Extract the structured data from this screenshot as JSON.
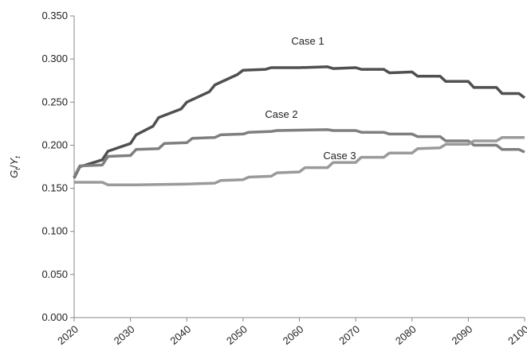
{
  "chart_data": {
    "type": "line",
    "ylabel": [
      "G",
      "t",
      "/",
      "Y",
      "t"
    ],
    "xlim": [
      2020,
      2100
    ],
    "xticks": [
      2020,
      2030,
      2040,
      2050,
      2060,
      2070,
      2080,
      2090,
      2100
    ],
    "ylim": [
      0,
      0.35
    ],
    "yticks": [
      {
        "value": 0,
        "label": "0.000"
      },
      {
        "value": 0.05,
        "label": "0.050"
      },
      {
        "value": 0.1,
        "label": "0.100"
      },
      {
        "value": 0.15,
        "label": "0.150"
      },
      {
        "value": 0.2,
        "label": "0.200"
      },
      {
        "value": 0.25,
        "label": "0.250"
      },
      {
        "value": 0.3,
        "label": "0.300"
      },
      {
        "value": 0.35,
        "label": "0.350"
      }
    ],
    "series": [
      {
        "name": "Case 1",
        "color": "#505050",
        "x": [
          2020,
          2021,
          2025,
          2026,
          2030,
          2031,
          2034,
          2035,
          2039,
          2040,
          2044,
          2045,
          2049,
          2050,
          2054,
          2055,
          2060,
          2065,
          2066,
          2070,
          2071,
          2075,
          2076,
          2080,
          2081,
          2085,
          2086,
          2090,
          2091,
          2095,
          2096,
          2099,
          2100
        ],
        "values": [
          0.162,
          0.175,
          0.183,
          0.193,
          0.202,
          0.212,
          0.222,
          0.232,
          0.242,
          0.25,
          0.262,
          0.27,
          0.282,
          0.287,
          0.288,
          0.29,
          0.29,
          0.291,
          0.289,
          0.29,
          0.288,
          0.288,
          0.284,
          0.285,
          0.28,
          0.28,
          0.274,
          0.274,
          0.267,
          0.267,
          0.26,
          0.26,
          0.255
        ]
      },
      {
        "name": "Case 2",
        "color": "#7f7f7f",
        "x": [
          2020,
          2021,
          2025,
          2026,
          2030,
          2031,
          2035,
          2036,
          2040,
          2041,
          2045,
          2046,
          2050,
          2051,
          2055,
          2056,
          2065,
          2066,
          2070,
          2071,
          2075,
          2076,
          2080,
          2081,
          2085,
          2086,
          2090,
          2091,
          2095,
          2096,
          2099,
          2100
        ],
        "values": [
          0.163,
          0.176,
          0.177,
          0.187,
          0.188,
          0.195,
          0.196,
          0.202,
          0.203,
          0.208,
          0.209,
          0.212,
          0.213,
          0.215,
          0.216,
          0.217,
          0.218,
          0.217,
          0.217,
          0.215,
          0.215,
          0.213,
          0.213,
          0.21,
          0.21,
          0.205,
          0.205,
          0.2,
          0.2,
          0.195,
          0.195,
          0.192
        ]
      },
      {
        "name": "Case 3",
        "color": "#9a9a9a",
        "x": [
          2020,
          2025,
          2026,
          2030,
          2031,
          2040,
          2045,
          2046,
          2050,
          2051,
          2055,
          2056,
          2060,
          2061,
          2065,
          2066,
          2070,
          2071,
          2075,
          2076,
          2080,
          2081,
          2085,
          2086,
          2090,
          2091,
          2095,
          2096,
          2100
        ],
        "values": [
          0.157,
          0.157,
          0.154,
          0.154,
          0.154,
          0.155,
          0.156,
          0.159,
          0.16,
          0.163,
          0.164,
          0.168,
          0.169,
          0.174,
          0.174,
          0.18,
          0.18,
          0.186,
          0.186,
          0.191,
          0.191,
          0.196,
          0.197,
          0.201,
          0.201,
          0.205,
          0.205,
          0.209,
          0.209
        ]
      }
    ]
  }
}
